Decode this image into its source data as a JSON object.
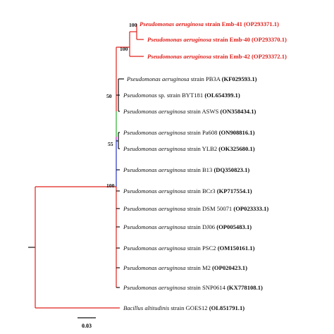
{
  "colors": {
    "red": "#e0201b",
    "green": "#28b22c",
    "blue": "#2433c8",
    "purple": "#b21fb0",
    "black": "#111111"
  },
  "taxa": [
    {
      "species": "Pseudomonas aeruginosa",
      "strain": " strain Emb-41 ",
      "accession": "(OP293371.1)",
      "color": "red",
      "all_bold": true
    },
    {
      "species": "Pseudomonas aeruginosa",
      "strain": " strain Emb-40 ",
      "accession": "(OP293370.1)",
      "color": "red",
      "all_bold": true
    },
    {
      "species": "Pseudomonas aeruginosa",
      "strain": " strain Emb-42 ",
      "accession": "(OP293372.1)",
      "color": "red",
      "all_bold": true
    },
    {
      "species": "Pseudomonas aeruginosa",
      "strain": " strain PB3A ",
      "accession": "(KF029593.1)",
      "color": "black",
      "all_bold": false
    },
    {
      "species": "Pseudomonas",
      "strain": " sp. strain BYT181 ",
      "accession": "(OL654399.1)",
      "color": "black",
      "all_bold": false
    },
    {
      "species": "Pseudomonas aeruginosa",
      "strain": " strain ASWS ",
      "accession": "(ON358434.1)",
      "color": "black",
      "all_bold": false
    },
    {
      "species": "Pseudomonas aeruginosa",
      "strain": " strain Pa608 ",
      "accession": "(ON908816.1)",
      "color": "black",
      "all_bold": false
    },
    {
      "species": "Pseudomonas aeruginosa",
      "strain": " strain YLB2 ",
      "accession": "(OK325680.1)",
      "color": "black",
      "all_bold": false
    },
    {
      "species": "Pseudomonas aeruginosa",
      "strain": " strain B13 ",
      "accession": "(DQ350823.1)",
      "color": "black",
      "all_bold": false
    },
    {
      "species": "Pseudomonas aeruginosa",
      "strain": " strain BCr3 ",
      "accession": "(KP717554.1)",
      "color": "black",
      "all_bold": false
    },
    {
      "species": "Pseudomonas aeruginosa",
      "strain": " strain DSM 50071 ",
      "accession": "(OP023333.1)",
      "color": "black",
      "all_bold": false
    },
    {
      "species": "Pseudomonas aeruginosa",
      "strain": " strain DJ06 ",
      "accession": "(OP005483.1)",
      "color": "black",
      "all_bold": false
    },
    {
      "species": "Pseudomonas aeruginosa",
      "strain": " strain PSC2 ",
      "accession": "(OM150161.1)",
      "color": "black",
      "all_bold": false
    },
    {
      "species": "Pseudomonas aeruginosa",
      "strain": " strain M2 ",
      "accession": "(OP020423.1)",
      "color": "black",
      "all_bold": false
    },
    {
      "species": "Pseudomonas aeruginosa",
      "strain": " strain SNP0614 ",
      "accession": "(KX778108.1)",
      "color": "black",
      "all_bold": false
    },
    {
      "species": "Bacillus altitudinis",
      "strain": " strain GOES12 ",
      "accession": "(OL851791.1)",
      "color": "black",
      "all_bold": false
    }
  ],
  "bootstrap": [
    {
      "value": "100",
      "node": "emb41-emb40"
    },
    {
      "value": "100",
      "node": "emb-clade"
    },
    {
      "value": "50",
      "node": "pb3a-clade"
    },
    {
      "value": "55",
      "node": "pa608-clade"
    },
    {
      "value": "100",
      "node": "pseudomonas-clade"
    }
  ],
  "scale_bar": {
    "label": "0.03"
  }
}
